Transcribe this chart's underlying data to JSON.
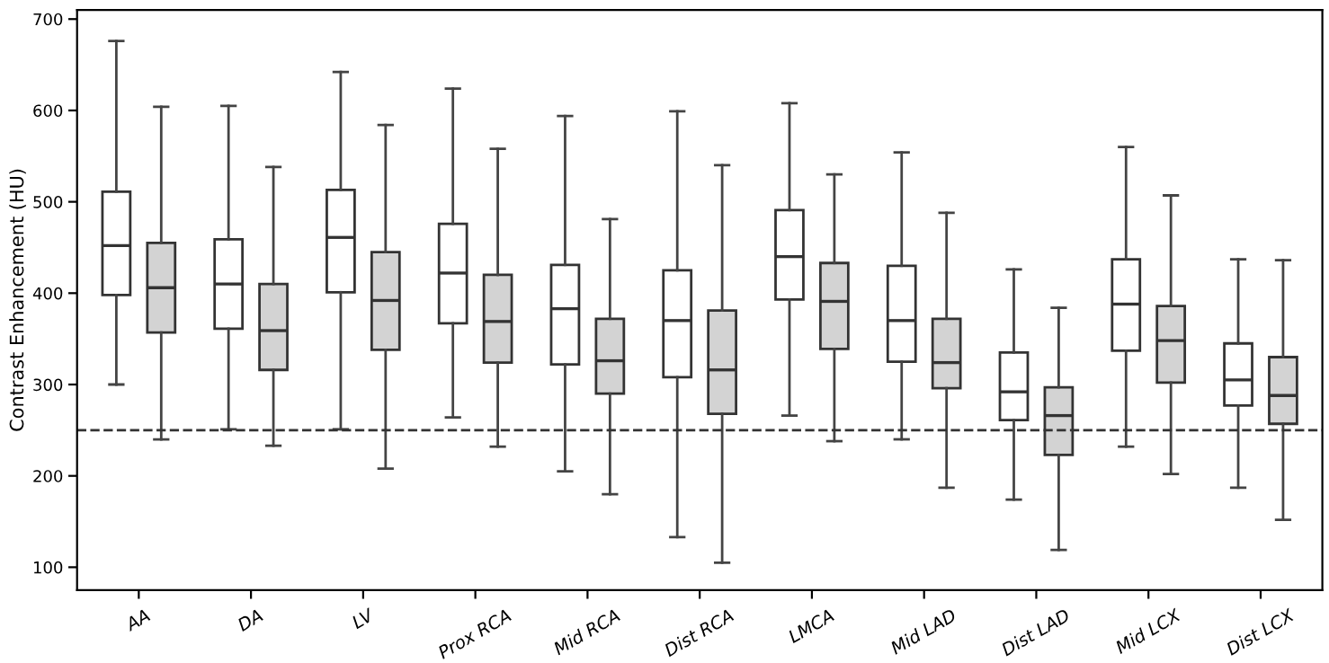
{
  "chart_data": {
    "type": "box",
    "ylabel": "Contrast Enhancement (HU)",
    "categories": [
      "AA",
      "DA",
      "LV",
      "Prox RCA",
      "Mid RCA",
      "Dist RCA",
      "LMCA",
      "Mid LAD",
      "Dist LAD",
      "Mid LCX",
      "Dist LCX"
    ],
    "series": [
      {
        "color": "#ffffff",
        "boxes": [
          {
            "low": 300,
            "q1": 398,
            "median": 452,
            "q3": 511,
            "high": 676
          },
          {
            "low": 251,
            "q1": 361,
            "median": 410,
            "q3": 459,
            "high": 605
          },
          {
            "low": 251,
            "q1": 401,
            "median": 461,
            "q3": 513,
            "high": 642
          },
          {
            "low": 264,
            "q1": 367,
            "median": 422,
            "q3": 476,
            "high": 624
          },
          {
            "low": 205,
            "q1": 322,
            "median": 383,
            "q3": 431,
            "high": 594
          },
          {
            "low": 133,
            "q1": 308,
            "median": 370,
            "q3": 425,
            "high": 599
          },
          {
            "low": 266,
            "q1": 393,
            "median": 440,
            "q3": 491,
            "high": 608
          },
          {
            "low": 240,
            "q1": 325,
            "median": 370,
            "q3": 430,
            "high": 554
          },
          {
            "low": 174,
            "q1": 261,
            "median": 292,
            "q3": 335,
            "high": 426
          },
          {
            "low": 232,
            "q1": 337,
            "median": 388,
            "q3": 437,
            "high": 560
          },
          {
            "low": 187,
            "q1": 277,
            "median": 305,
            "q3": 345,
            "high": 437
          }
        ]
      },
      {
        "color": "#d3d3d3",
        "boxes": [
          {
            "low": 240,
            "q1": 357,
            "median": 406,
            "q3": 455,
            "high": 604
          },
          {
            "low": 233,
            "q1": 316,
            "median": 359,
            "q3": 410,
            "high": 538
          },
          {
            "low": 208,
            "q1": 338,
            "median": 392,
            "q3": 445,
            "high": 584
          },
          {
            "low": 232,
            "q1": 324,
            "median": 369,
            "q3": 420,
            "high": 558
          },
          {
            "low": 180,
            "q1": 290,
            "median": 326,
            "q3": 372,
            "high": 481
          },
          {
            "low": 105,
            "q1": 268,
            "median": 316,
            "q3": 381,
            "high": 540
          },
          {
            "low": 238,
            "q1": 339,
            "median": 391,
            "q3": 433,
            "high": 530
          },
          {
            "low": 187,
            "q1": 296,
            "median": 324,
            "q3": 372,
            "high": 488
          },
          {
            "low": 119,
            "q1": 223,
            "median": 266,
            "q3": 297,
            "high": 384
          },
          {
            "low": 202,
            "q1": 302,
            "median": 348,
            "q3": 386,
            "high": 507
          },
          {
            "low": 152,
            "q1": 257,
            "median": 288,
            "q3": 330,
            "high": 436
          }
        ]
      }
    ],
    "ylim": [
      75,
      710
    ],
    "yticks": [
      100,
      200,
      300,
      400,
      500,
      600,
      700
    ],
    "ref_lines": [
      {
        "axis": "y",
        "value": 250,
        "line_style": "dashed",
        "color": "#333333"
      }
    ],
    "grid": false
  }
}
